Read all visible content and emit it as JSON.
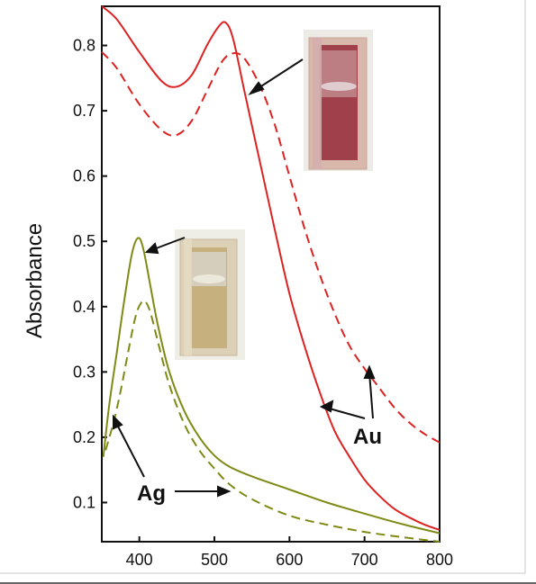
{
  "chart_data": {
    "type": "line",
    "xlabel": "",
    "ylabel": "Absorbance",
    "xlim": [
      350,
      800
    ],
    "ylim": [
      0.04,
      0.86
    ],
    "x_ticks": [
      "400",
      "500",
      "600",
      "700",
      "800"
    ],
    "y_ticks": [
      "0.1",
      "0.2",
      "0.3",
      "0.4",
      "0.5",
      "0.6",
      "0.7",
      "0.8"
    ],
    "grid": false,
    "annotations": [
      "Au",
      "Ag"
    ],
    "colors": {
      "au": "#dd2222",
      "ag": "#7f8a14"
    },
    "series": [
      {
        "style": "solid",
        "color": "#dd2222",
        "x": [
          350,
          370,
          400,
          430,
          450,
          470,
          490,
          505,
          515,
          525,
          540,
          560,
          580,
          600,
          620,
          640,
          660,
          680,
          700,
          720,
          740,
          760,
          780,
          800
        ],
        "y": [
          0.86,
          0.84,
          0.79,
          0.745,
          0.737,
          0.755,
          0.8,
          0.828,
          0.835,
          0.81,
          0.73,
          0.625,
          0.52,
          0.42,
          0.34,
          0.27,
          0.21,
          0.17,
          0.135,
          0.11,
          0.09,
          0.077,
          0.066,
          0.058
        ]
      },
      {
        "style": "dashed",
        "color": "#dd2222",
        "x": [
          350,
          370,
          400,
          430,
          450,
          470,
          490,
          510,
          525,
          540,
          560,
          580,
          600,
          620,
          640,
          660,
          680,
          700,
          710,
          720,
          740,
          760,
          780,
          800
        ],
        "y": [
          0.79,
          0.765,
          0.71,
          0.67,
          0.663,
          0.685,
          0.73,
          0.775,
          0.788,
          0.78,
          0.74,
          0.68,
          0.6,
          0.52,
          0.45,
          0.39,
          0.34,
          0.305,
          0.29,
          0.275,
          0.245,
          0.222,
          0.205,
          0.192
        ]
      },
      {
        "style": "solid",
        "color": "#7f8a14",
        "x": [
          352,
          360,
          370,
          380,
          390,
          398,
          405,
          415,
          425,
          440,
          460,
          480,
          500,
          520,
          550,
          600,
          650,
          700,
          750,
          800
        ],
        "y": [
          0.17,
          0.25,
          0.33,
          0.41,
          0.48,
          0.505,
          0.49,
          0.43,
          0.37,
          0.3,
          0.24,
          0.2,
          0.172,
          0.155,
          0.14,
          0.12,
          0.1,
          0.083,
          0.067,
          0.053
        ]
      },
      {
        "style": "dashed",
        "color": "#7f8a14",
        "x": [
          355,
          365,
          375,
          385,
          395,
          402,
          408,
          415,
          425,
          440,
          460,
          480,
          500,
          520,
          550,
          600,
          650,
          700,
          750,
          800
        ],
        "y": [
          0.18,
          0.22,
          0.27,
          0.33,
          0.385,
          0.405,
          0.408,
          0.39,
          0.345,
          0.28,
          0.22,
          0.18,
          0.152,
          0.128,
          0.105,
          0.08,
          0.066,
          0.055,
          0.047,
          0.04
        ]
      }
    ]
  }
}
